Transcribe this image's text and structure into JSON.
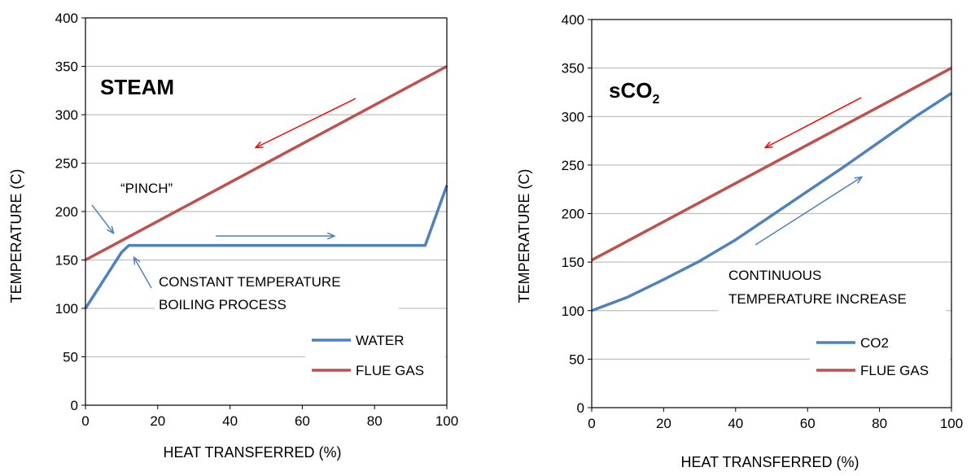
{
  "chart_data": [
    {
      "type": "line",
      "title": "STEAM",
      "xlabel": "HEAT TRANSFERRED  (%)",
      "ylabel": "TEMPERATURE (C)",
      "xlim": [
        0,
        100
      ],
      "ylim": [
        0,
        400
      ],
      "x_ticks": [
        "0",
        "20",
        "40",
        "60",
        "80",
        "100"
      ],
      "y_ticks": [
        "0",
        "50",
        "100",
        "150",
        "200",
        "250",
        "300",
        "350",
        "400"
      ],
      "grid": "horizontal",
      "legend_position": "bottom-right",
      "series": [
        {
          "name": "WATER",
          "color": "#4F81BD",
          "x": [
            0,
            10,
            12,
            94,
            100
          ],
          "y": [
            100,
            158,
            165,
            165,
            227
          ]
        },
        {
          "name": "FLUE GAS",
          "color": "#C0504D",
          "x": [
            0,
            100
          ],
          "y": [
            150,
            350
          ]
        }
      ],
      "annotations": {
        "pinch": "“PINCH”",
        "constant_line1": "CONSTANT TEMPERATURE",
        "constant_line2": "BOILING PROCESS"
      }
    },
    {
      "type": "line",
      "title": "sCO",
      "title_subscript": "2",
      "xlabel": "HEAT TRANSFERRED  (%)",
      "ylabel": "TEMPERATURE (C)",
      "xlim": [
        0,
        100
      ],
      "ylim": [
        0,
        400
      ],
      "x_ticks": [
        "0",
        "20",
        "40",
        "60",
        "80",
        "100"
      ],
      "y_ticks": [
        "0",
        "50",
        "100",
        "150",
        "200",
        "250",
        "300",
        "350",
        "400"
      ],
      "grid": "horizontal",
      "legend_position": "bottom-right",
      "series": [
        {
          "name": "CO2",
          "color": "#4F81BD",
          "x": [
            0,
            10,
            20,
            30,
            40,
            50,
            60,
            70,
            80,
            90,
            100
          ],
          "y": [
            100,
            114,
            132,
            151,
            173,
            198,
            223,
            248,
            274,
            300,
            324
          ]
        },
        {
          "name": "FLUE GAS",
          "color": "#C0504D",
          "x": [
            0,
            100
          ],
          "y": [
            152,
            350
          ]
        }
      ],
      "annotations": {
        "continuous_line1": "CONTINUOUS",
        "continuous_line2": "TEMPERATURE INCREASE"
      }
    }
  ]
}
